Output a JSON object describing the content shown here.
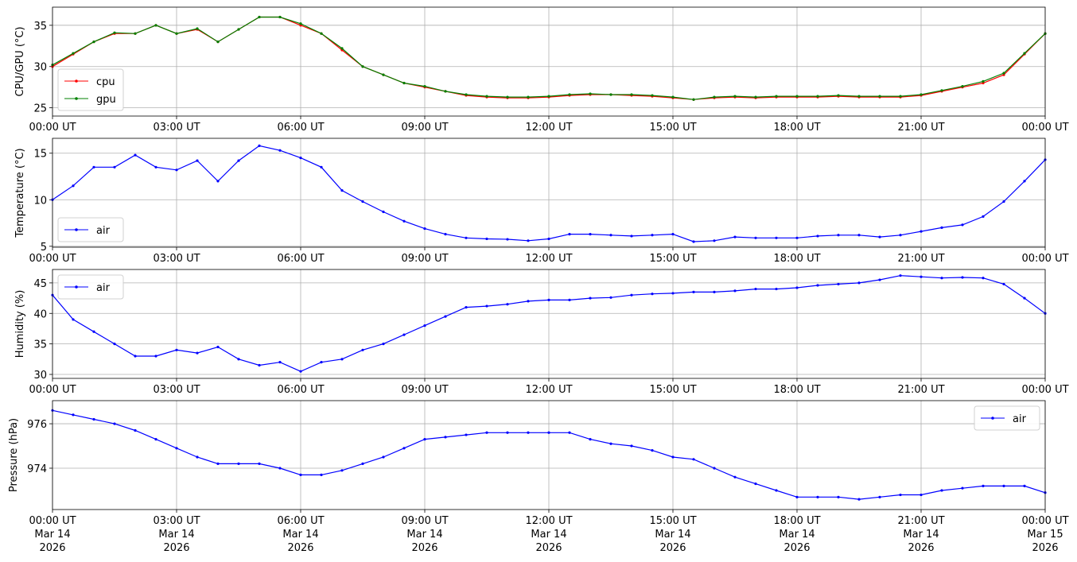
{
  "chart_data": [
    {
      "type": "line",
      "ylabel": "CPU/GPU (°C)",
      "ylim": [
        24.0,
        37.2
      ],
      "yticks": [
        25,
        30,
        35
      ],
      "grid": true,
      "legend": "lower left",
      "xlim": [
        "2026-03-14T00:00",
        "2026-03-15T00:00"
      ],
      "xticks": [
        {
          "value": "2026-03-14T00:00",
          "label": "00:00 UT"
        },
        {
          "value": "2026-03-14T03:00",
          "label": "03:00 UT"
        },
        {
          "value": "2026-03-14T06:00",
          "label": "06:00 UT"
        },
        {
          "value": "2026-03-14T09:00",
          "label": "09:00 UT"
        },
        {
          "value": "2026-03-14T12:00",
          "label": "12:00 UT"
        },
        {
          "value": "2026-03-14T15:00",
          "label": "15:00 UT"
        },
        {
          "value": "2026-03-14T18:00",
          "label": "18:00 UT"
        },
        {
          "value": "2026-03-14T21:00",
          "label": "21:00 UT"
        },
        {
          "value": "2026-03-15T00:00",
          "label": "00:00 UT"
        }
      ],
      "x": [
        "2026-03-14T00:00",
        "2026-03-14T00:30",
        "2026-03-14T01:00",
        "2026-03-14T01:30",
        "2026-03-14T02:00",
        "2026-03-14T02:30",
        "2026-03-14T03:00",
        "2026-03-14T03:30",
        "2026-03-14T04:00",
        "2026-03-14T04:30",
        "2026-03-14T05:00",
        "2026-03-14T05:30",
        "2026-03-14T06:00",
        "2026-03-14T06:30",
        "2026-03-14T07:00",
        "2026-03-14T07:30",
        "2026-03-14T08:00",
        "2026-03-14T08:30",
        "2026-03-14T09:00",
        "2026-03-14T09:30",
        "2026-03-14T10:00",
        "2026-03-14T10:30",
        "2026-03-14T11:00",
        "2026-03-14T11:30",
        "2026-03-14T12:00",
        "2026-03-14T12:30",
        "2026-03-14T13:00",
        "2026-03-14T13:30",
        "2026-03-14T14:00",
        "2026-03-14T14:30",
        "2026-03-14T15:00",
        "2026-03-14T15:30",
        "2026-03-14T16:00",
        "2026-03-14T16:30",
        "2026-03-14T17:00",
        "2026-03-14T17:30",
        "2026-03-14T18:00",
        "2026-03-14T18:30",
        "2026-03-14T19:00",
        "2026-03-14T19:30",
        "2026-03-14T20:00",
        "2026-03-14T20:30",
        "2026-03-14T21:00",
        "2026-03-14T21:30",
        "2026-03-14T22:00",
        "2026-03-14T22:30",
        "2026-03-14T23:00",
        "2026-03-14T23:30",
        "2026-03-15T00:00"
      ],
      "series": [
        {
          "name": "cpu",
          "color": "#ff0000",
          "values": [
            30,
            31.5,
            33,
            34,
            34,
            35,
            34,
            34.5,
            33,
            34.5,
            36,
            36,
            35,
            34,
            32,
            30,
            29,
            28,
            27.5,
            27,
            26.5,
            26.3,
            26.2,
            26.2,
            26.3,
            26.5,
            26.6,
            26.6,
            26.5,
            26.4,
            26.2,
            26,
            26.2,
            26.3,
            26.2,
            26.3,
            26.3,
            26.3,
            26.4,
            26.3,
            26.3,
            26.3,
            26.5,
            27,
            27.5,
            28,
            29,
            31.5,
            34
          ]
        },
        {
          "name": "gpu",
          "color": "#008000",
          "values": [
            30.2,
            31.6,
            33,
            34.1,
            34,
            35,
            34,
            34.6,
            33,
            34.5,
            36,
            36,
            35.2,
            34,
            32.2,
            30,
            29,
            28,
            27.6,
            27,
            26.6,
            26.4,
            26.3,
            26.3,
            26.4,
            26.6,
            26.7,
            26.6,
            26.6,
            26.5,
            26.3,
            26,
            26.3,
            26.4,
            26.3,
            26.4,
            26.4,
            26.4,
            26.5,
            26.4,
            26.4,
            26.4,
            26.6,
            27.1,
            27.6,
            28.2,
            29.2,
            31.6,
            34
          ]
        }
      ]
    },
    {
      "type": "line",
      "ylabel": "Temperature (°C)",
      "ylim": [
        4.9,
        16.6
      ],
      "yticks": [
        5,
        10,
        15
      ],
      "grid": true,
      "legend": "lower left",
      "xlim": [
        "2026-03-14T00:00",
        "2026-03-15T00:00"
      ],
      "xticks": [
        {
          "value": "2026-03-14T00:00",
          "label": "00:00 UT"
        },
        {
          "value": "2026-03-14T03:00",
          "label": "03:00 UT"
        },
        {
          "value": "2026-03-14T06:00",
          "label": "06:00 UT"
        },
        {
          "value": "2026-03-14T09:00",
          "label": "09:00 UT"
        },
        {
          "value": "2026-03-14T12:00",
          "label": "12:00 UT"
        },
        {
          "value": "2026-03-14T15:00",
          "label": "15:00 UT"
        },
        {
          "value": "2026-03-14T18:00",
          "label": "18:00 UT"
        },
        {
          "value": "2026-03-14T21:00",
          "label": "21:00 UT"
        },
        {
          "value": "2026-03-15T00:00",
          "label": "00:00 UT"
        }
      ],
      "x": [
        "2026-03-14T00:00",
        "2026-03-14T00:30",
        "2026-03-14T01:00",
        "2026-03-14T01:30",
        "2026-03-14T02:00",
        "2026-03-14T02:30",
        "2026-03-14T03:00",
        "2026-03-14T03:30",
        "2026-03-14T04:00",
        "2026-03-14T04:30",
        "2026-03-14T05:00",
        "2026-03-14T05:30",
        "2026-03-14T06:00",
        "2026-03-14T06:30",
        "2026-03-14T07:00",
        "2026-03-14T07:30",
        "2026-03-14T08:00",
        "2026-03-14T08:30",
        "2026-03-14T09:00",
        "2026-03-14T09:30",
        "2026-03-14T10:00",
        "2026-03-14T10:30",
        "2026-03-14T11:00",
        "2026-03-14T11:30",
        "2026-03-14T12:00",
        "2026-03-14T12:30",
        "2026-03-14T13:00",
        "2026-03-14T13:30",
        "2026-03-14T14:00",
        "2026-03-14T14:30",
        "2026-03-14T15:00",
        "2026-03-14T15:30",
        "2026-03-14T16:00",
        "2026-03-14T16:30",
        "2026-03-14T17:00",
        "2026-03-14T17:30",
        "2026-03-14T18:00",
        "2026-03-14T18:30",
        "2026-03-14T19:00",
        "2026-03-14T19:30",
        "2026-03-14T20:00",
        "2026-03-14T20:30",
        "2026-03-14T21:00",
        "2026-03-14T21:30",
        "2026-03-14T22:00",
        "2026-03-14T22:30",
        "2026-03-14T23:00",
        "2026-03-14T23:30",
        "2026-03-15T00:00"
      ],
      "series": [
        {
          "name": "air",
          "color": "#0000ff",
          "values": [
            10,
            11.5,
            13.5,
            13.5,
            14.8,
            13.5,
            13.2,
            14.2,
            12,
            14.2,
            15.8,
            15.3,
            14.5,
            13.5,
            11,
            9.8,
            8.7,
            7.7,
            6.9,
            6.3,
            5.9,
            5.8,
            5.75,
            5.6,
            5.8,
            6.3,
            6.3,
            6.2,
            6.1,
            6.2,
            6.3,
            5.5,
            5.6,
            6,
            5.9,
            5.9,
            5.9,
            6.1,
            6.2,
            6.2,
            6,
            6.2,
            6.6,
            7,
            7.3,
            8.2,
            9.8,
            12,
            14.3
          ]
        }
      ]
    },
    {
      "type": "line",
      "ylabel": "Humidity (%)",
      "ylim": [
        29.35,
        47.2
      ],
      "yticks": [
        30,
        35,
        40,
        45
      ],
      "grid": true,
      "legend": "upper left",
      "xlim": [
        "2026-03-14T00:00",
        "2026-03-15T00:00"
      ],
      "xticks": [
        {
          "value": "2026-03-14T00:00",
          "label": "00:00 UT"
        },
        {
          "value": "2026-03-14T03:00",
          "label": "03:00 UT"
        },
        {
          "value": "2026-03-14T06:00",
          "label": "06:00 UT"
        },
        {
          "value": "2026-03-14T09:00",
          "label": "09:00 UT"
        },
        {
          "value": "2026-03-14T12:00",
          "label": "12:00 UT"
        },
        {
          "value": "2026-03-14T15:00",
          "label": "15:00 UT"
        },
        {
          "value": "2026-03-14T18:00",
          "label": "18:00 UT"
        },
        {
          "value": "2026-03-14T21:00",
          "label": "21:00 UT"
        },
        {
          "value": "2026-03-15T00:00",
          "label": "00:00 UT"
        }
      ],
      "x": [
        "2026-03-14T00:00",
        "2026-03-14T00:30",
        "2026-03-14T01:00",
        "2026-03-14T01:30",
        "2026-03-14T02:00",
        "2026-03-14T02:30",
        "2026-03-14T03:00",
        "2026-03-14T03:30",
        "2026-03-14T04:00",
        "2026-03-14T04:30",
        "2026-03-14T05:00",
        "2026-03-14T05:30",
        "2026-03-14T06:00",
        "2026-03-14T06:30",
        "2026-03-14T07:00",
        "2026-03-14T07:30",
        "2026-03-14T08:00",
        "2026-03-14T08:30",
        "2026-03-14T09:00",
        "2026-03-14T09:30",
        "2026-03-14T10:00",
        "2026-03-14T10:30",
        "2026-03-14T11:00",
        "2026-03-14T11:30",
        "2026-03-14T12:00",
        "2026-03-14T12:30",
        "2026-03-14T13:00",
        "2026-03-14T13:30",
        "2026-03-14T14:00",
        "2026-03-14T14:30",
        "2026-03-14T15:00",
        "2026-03-14T15:30",
        "2026-03-14T16:00",
        "2026-03-14T16:30",
        "2026-03-14T17:00",
        "2026-03-14T17:30",
        "2026-03-14T18:00",
        "2026-03-14T18:30",
        "2026-03-14T19:00",
        "2026-03-14T19:30",
        "2026-03-14T20:00",
        "2026-03-14T20:30",
        "2026-03-14T21:00",
        "2026-03-14T21:30",
        "2026-03-14T22:00",
        "2026-03-14T22:30",
        "2026-03-14T23:00",
        "2026-03-14T23:30",
        "2026-03-15T00:00"
      ],
      "series": [
        {
          "name": "air",
          "color": "#0000ff",
          "values": [
            43,
            39,
            37,
            35,
            33,
            33,
            34,
            33.5,
            34.5,
            32.5,
            31.5,
            32,
            30.5,
            32,
            32.5,
            34,
            35,
            36.5,
            38,
            39.5,
            41,
            41.2,
            41.5,
            42,
            42.2,
            42.2,
            42.5,
            42.6,
            43,
            43.2,
            43.3,
            43.5,
            43.5,
            43.7,
            44,
            44,
            44.2,
            44.6,
            44.8,
            45,
            45.5,
            46.2,
            46,
            45.8,
            45.9,
            45.8,
            44.8,
            42.5,
            40
          ]
        }
      ]
    },
    {
      "type": "line",
      "ylabel": "Pressure (hPa)",
      "ylim": [
        972.14,
        977.04
      ],
      "yticks": [
        974,
        976
      ],
      "grid": true,
      "legend": "upper right",
      "xlim": [
        "2026-03-14T00:00",
        "2026-03-15T00:00"
      ],
      "xticks": [
        {
          "value": "2026-03-14T00:00",
          "label": "00:00 UT\nMar 14\n2026"
        },
        {
          "value": "2026-03-14T03:00",
          "label": "03:00 UT\nMar 14\n2026"
        },
        {
          "value": "2026-03-14T06:00",
          "label": "06:00 UT\nMar 14\n2026"
        },
        {
          "value": "2026-03-14T09:00",
          "label": "09:00 UT\nMar 14\n2026"
        },
        {
          "value": "2026-03-14T12:00",
          "label": "12:00 UT\nMar 14\n2026"
        },
        {
          "value": "2026-03-14T15:00",
          "label": "15:00 UT\nMar 14\n2026"
        },
        {
          "value": "2026-03-14T18:00",
          "label": "18:00 UT\nMar 14\n2026"
        },
        {
          "value": "2026-03-14T21:00",
          "label": "21:00 UT\nMar 14\n2026"
        },
        {
          "value": "2026-03-15T00:00",
          "label": "00:00 UT\nMar 15\n2026"
        }
      ],
      "x": [
        "2026-03-14T00:00",
        "2026-03-14T00:30",
        "2026-03-14T01:00",
        "2026-03-14T01:30",
        "2026-03-14T02:00",
        "2026-03-14T02:30",
        "2026-03-14T03:00",
        "2026-03-14T03:30",
        "2026-03-14T04:00",
        "2026-03-14T04:30",
        "2026-03-14T05:00",
        "2026-03-14T05:30",
        "2026-03-14T06:00",
        "2026-03-14T06:30",
        "2026-03-14T07:00",
        "2026-03-14T07:30",
        "2026-03-14T08:00",
        "2026-03-14T08:30",
        "2026-03-14T09:00",
        "2026-03-14T09:30",
        "2026-03-14T10:00",
        "2026-03-14T10:30",
        "2026-03-14T11:00",
        "2026-03-14T11:30",
        "2026-03-14T12:00",
        "2026-03-14T12:30",
        "2026-03-14T13:00",
        "2026-03-14T13:30",
        "2026-03-14T14:00",
        "2026-03-14T14:30",
        "2026-03-14T15:00",
        "2026-03-14T15:30",
        "2026-03-14T16:00",
        "2026-03-14T16:30",
        "2026-03-14T17:00",
        "2026-03-14T17:30",
        "2026-03-14T18:00",
        "2026-03-14T18:30",
        "2026-03-14T19:00",
        "2026-03-14T19:30",
        "2026-03-14T20:00",
        "2026-03-14T20:30",
        "2026-03-14T21:00",
        "2026-03-14T21:30",
        "2026-03-14T22:00",
        "2026-03-14T22:30",
        "2026-03-14T23:00",
        "2026-03-14T23:30",
        "2026-03-15T00:00"
      ],
      "series": [
        {
          "name": "air",
          "color": "#0000ff",
          "values": [
            976.6,
            976.4,
            976.2,
            976,
            975.7,
            975.3,
            974.9,
            974.5,
            974.2,
            974.2,
            974.2,
            974,
            973.7,
            973.7,
            973.9,
            974.2,
            974.5,
            974.9,
            975.3,
            975.4,
            975.5,
            975.6,
            975.6,
            975.6,
            975.6,
            975.6,
            975.3,
            975.1,
            975,
            974.8,
            974.5,
            974.4,
            974,
            973.6,
            973.3,
            973,
            972.7,
            972.7,
            972.7,
            972.6,
            972.7,
            972.8,
            972.8,
            973,
            973.1,
            973.2,
            973.2,
            973.2,
            972.9
          ]
        }
      ]
    }
  ]
}
